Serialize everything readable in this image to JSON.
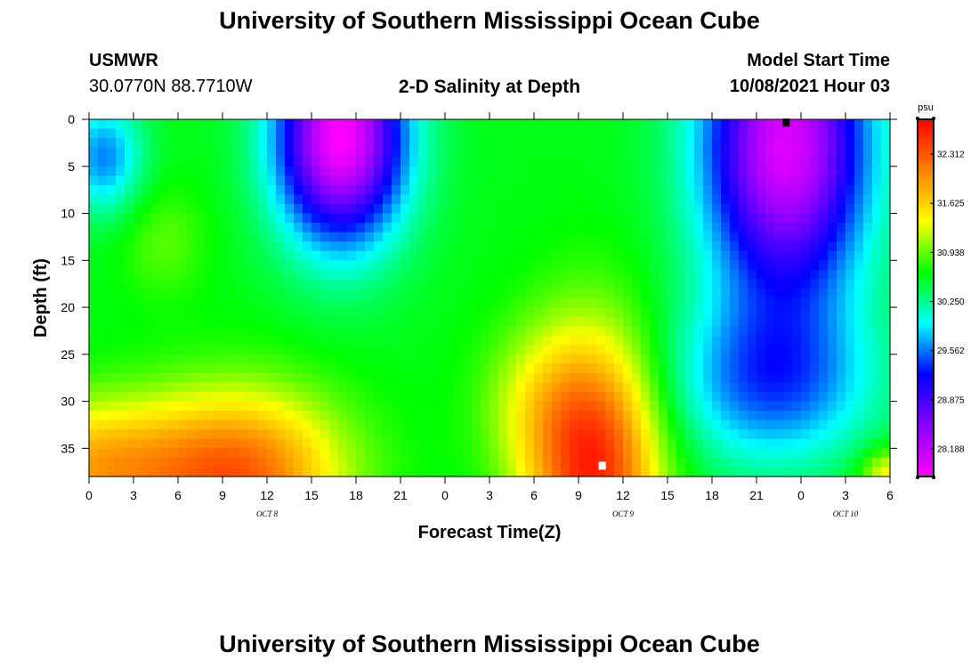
{
  "page": {
    "title_top": "University of Southern Mississippi Ocean Cube",
    "title_bottom": "University of Southern Mississippi Ocean Cube",
    "station_name": "USMWR",
    "station_coords": "30.0770N  88.7710W",
    "plot_title": "2-D Salinity at Depth",
    "model_start_label": "Model Start Time",
    "model_start_value": "10/08/2021 Hour 03"
  },
  "colors": {
    "palette": [
      "#ff00ff",
      "#8b00ff",
      "#0000ff",
      "#00ffff",
      "#00ff00",
      "#ffff00",
      "#ff8000",
      "#ff0000"
    ]
  },
  "chart_data": {
    "type": "heatmap",
    "title": "2-D Salinity at Depth",
    "xlabel": "Forecast Time(Z)",
    "ylabel": "Depth (ft)",
    "x_tick_labels": [
      "0",
      "3",
      "6",
      "9",
      "12",
      "15",
      "18",
      "21",
      "0",
      "3",
      "6",
      "9",
      "12",
      "15",
      "18",
      "21",
      "0",
      "3",
      "6"
    ],
    "x_range_hours": [
      0,
      54
    ],
    "date_labels": [
      {
        "text": "OCT 8",
        "hour": 12
      },
      {
        "text": "OCT 9",
        "hour": 36
      },
      {
        "text": "OCT 10",
        "hour": 51
      }
    ],
    "y_ticks": [
      0,
      5,
      10,
      15,
      20,
      25,
      30,
      35
    ],
    "y_range": [
      0,
      38
    ],
    "colorbar": {
      "unit": "psu",
      "labels": [
        "32.312",
        "31.625",
        "30.938",
        "30.250",
        "29.562",
        "28.875",
        "28.188"
      ],
      "range": [
        27.8,
        32.8
      ]
    },
    "salinity_profile_summary": {
      "low_centers": [
        {
          "hour": 17,
          "depth": 3,
          "value": 27.9
        },
        {
          "hour": 47,
          "depth": 0,
          "value": 28.1
        }
      ],
      "high_centers": [
        {
          "hour": 10,
          "depth": 37,
          "value": 32.6
        },
        {
          "hour": 34,
          "depth": 36,
          "value": 32.8
        }
      ]
    },
    "markers": [
      {
        "hour": 47,
        "depth": 0.3,
        "color": "black"
      },
      {
        "hour": 34.6,
        "depth": 36.8,
        "color": "white"
      }
    ]
  }
}
